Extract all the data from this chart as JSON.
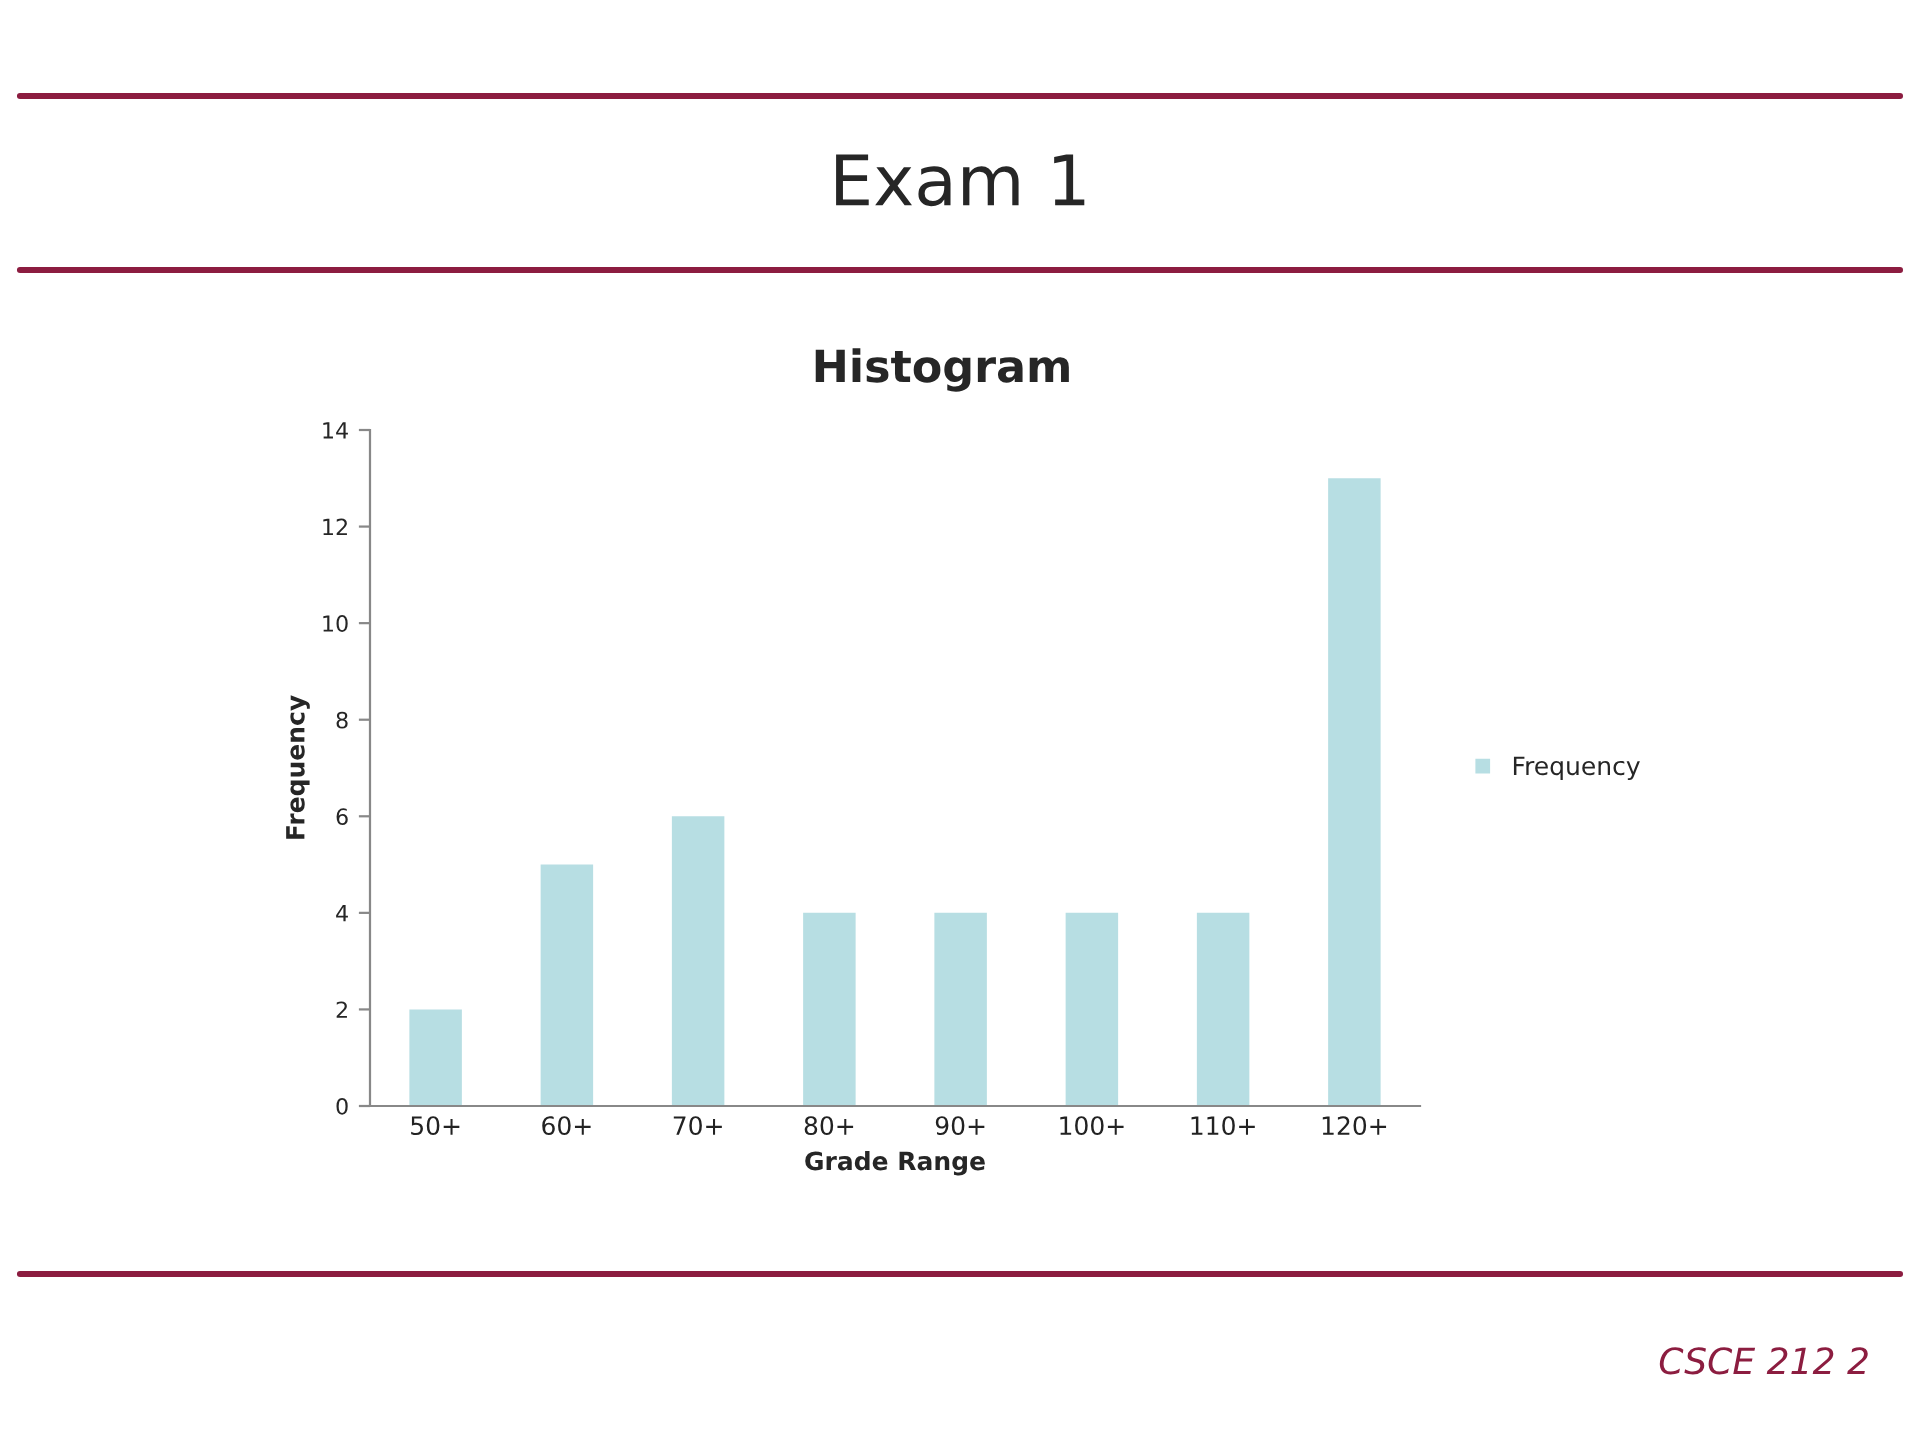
{
  "chart_data": {
    "type": "bar",
    "title": "Exam 1",
    "subtitle": "Histogram",
    "xlabel": "Grade Range",
    "ylabel": "Frequency",
    "categories": [
      "50+",
      "60+",
      "70+",
      "80+",
      "90+",
      "100+",
      "110+",
      "120+"
    ],
    "series": [
      {
        "name": "Frequency",
        "color": "#b7dee3",
        "values": [
          2,
          5,
          6,
          4,
          4,
          4,
          4,
          13
        ]
      }
    ],
    "ylim": [
      0,
      14
    ],
    "yticks": [
      0,
      2,
      4,
      6,
      8,
      10,
      12,
      14
    ],
    "legend": "right",
    "annotations": [
      "CSCE 212 2"
    ]
  }
}
